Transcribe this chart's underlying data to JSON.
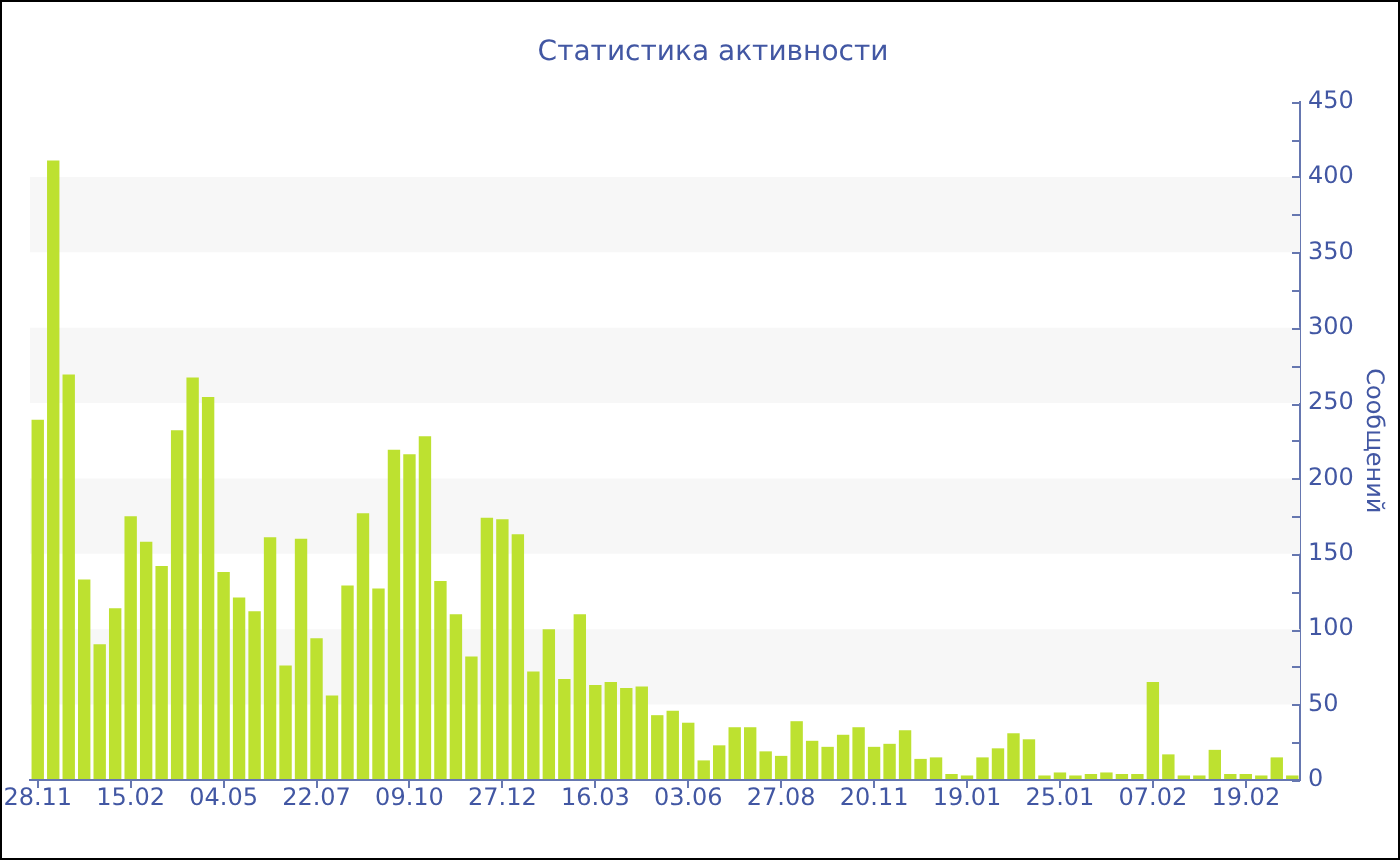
{
  "chart_data": {
    "type": "bar",
    "title": "Статистика активности",
    "ylabel": "Сообщений",
    "categories": [
      "28.11",
      null,
      null,
      null,
      null,
      null,
      "15.02",
      null,
      null,
      null,
      null,
      null,
      "04.05",
      null,
      null,
      null,
      null,
      null,
      "22.07",
      null,
      null,
      null,
      null,
      null,
      "09.10",
      null,
      null,
      null,
      null,
      null,
      "27.12",
      null,
      null,
      null,
      null,
      null,
      "16.03",
      null,
      null,
      null,
      null,
      null,
      "03.06",
      null,
      null,
      null,
      null,
      null,
      "27.08",
      null,
      null,
      null,
      null,
      null,
      "20.11",
      null,
      null,
      null,
      null,
      null,
      "19.01",
      null,
      null,
      null,
      null,
      null,
      "25.01",
      null,
      null,
      null,
      null,
      null,
      "07.02",
      null,
      null,
      null,
      null,
      null,
      "19.02",
      null,
      null,
      null
    ],
    "values": [
      239,
      411,
      269,
      133,
      90,
      114,
      175,
      158,
      142,
      232,
      267,
      254,
      138,
      121,
      112,
      161,
      76,
      160,
      94,
      56,
      129,
      177,
      127,
      219,
      216,
      228,
      132,
      110,
      82,
      174,
      173,
      163,
      72,
      100,
      67,
      110,
      63,
      65,
      61,
      62,
      43,
      46,
      38,
      13,
      23,
      35,
      35,
      19,
      16,
      39,
      26,
      22,
      30,
      35,
      22,
      24,
      33,
      14,
      15,
      4,
      3,
      15,
      21,
      31,
      27,
      3,
      5,
      3,
      4,
      5,
      4,
      4,
      65,
      17,
      3,
      3,
      20,
      4,
      4,
      3,
      15,
      3
    ],
    "color": "#bde130",
    "ylim": [
      0,
      450
    ],
    "yticks": [
      0,
      {
        "value": 25,
        "label": null
      },
      50,
      {
        "value": 75,
        "label": null
      },
      100,
      {
        "value": 125,
        "label": null
      },
      150,
      {
        "value": 175,
        "label": null
      },
      200,
      {
        "value": 225,
        "label": null
      },
      250,
      {
        "value": 275,
        "label": null
      },
      300,
      {
        "value": 325,
        "label": null
      },
      350,
      {
        "value": 375,
        "label": null
      },
      400,
      {
        "value": 425,
        "label": null
      },
      450
    ],
    "bands": [
      {
        "axis": "y",
        "from": 50,
        "to": 100,
        "color": "#f7f7f7"
      },
      {
        "axis": "y",
        "from": 150,
        "to": 200,
        "color": "#f7f7f7"
      },
      {
        "axis": "y",
        "from": 250,
        "to": 300,
        "color": "#f7f7f7"
      },
      {
        "axis": "y",
        "from": 350,
        "to": 400,
        "color": "#f7f7f7"
      }
    ]
  }
}
